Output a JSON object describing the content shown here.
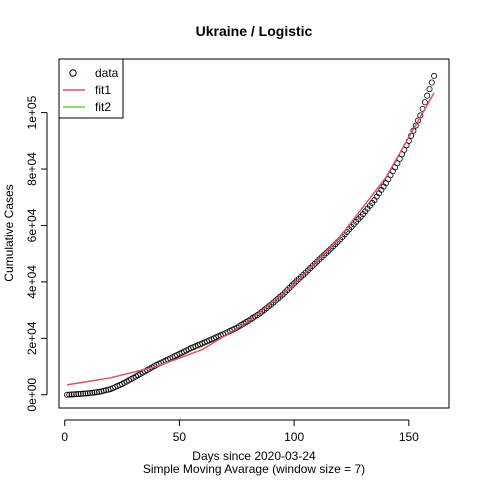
{
  "chart_data": {
    "type": "scatter",
    "title": "Ukraine / Logistic",
    "xlabel": "Days since 2020-03-24",
    "subtitle": "Simple Moving Avarage (window size = 7)",
    "ylabel": "Cumulative Cases",
    "xlim": [
      -2.5,
      167.5
    ],
    "ylim": [
      -4700,
      119000
    ],
    "x_ticks": [
      0,
      50,
      100,
      150
    ],
    "x_tick_labels": [
      "0",
      "50",
      "100",
      "150"
    ],
    "y_ticks": [
      0,
      20000,
      40000,
      60000,
      80000,
      100000
    ],
    "y_tick_labels": [
      "0e+00",
      "2e+04",
      "4e+04",
      "6e+04",
      "8e+04",
      "1e+05"
    ],
    "legend_position": "top-left",
    "data_anchors": {
      "x": [
        1,
        5,
        10,
        15,
        20,
        25,
        30,
        35,
        40,
        45,
        50,
        55,
        60,
        65,
        70,
        75,
        80,
        85,
        90,
        95,
        100,
        105,
        110,
        115,
        120,
        125,
        130,
        135,
        140,
        145,
        150,
        155,
        161
      ],
      "y": [
        0,
        200,
        500,
        1000,
        2000,
        3800,
        6000,
        8300,
        10600,
        12500,
        14500,
        16500,
        18200,
        20000,
        21800,
        23800,
        26200,
        28800,
        32000,
        35500,
        39500,
        43300,
        47200,
        51000,
        55000,
        59500,
        64000,
        69000,
        75000,
        82000,
        90000,
        99000,
        113000
      ]
    },
    "series": [
      {
        "name": "data",
        "color": "#000000",
        "marker": "open-circle",
        "x_start": 1,
        "x_end": 161,
        "x_step": 1
      },
      {
        "name": "fit1",
        "color": "#DF536B",
        "x": [
          1,
          20,
          40,
          60,
          80,
          100,
          120,
          140,
          161
        ],
        "y": [
          3500,
          6000,
          10000,
          16000,
          26000,
          39000,
          56000,
          77000,
          107000
        ]
      },
      {
        "name": "fit2",
        "color": "#61D04F",
        "x": [],
        "y": []
      }
    ]
  }
}
